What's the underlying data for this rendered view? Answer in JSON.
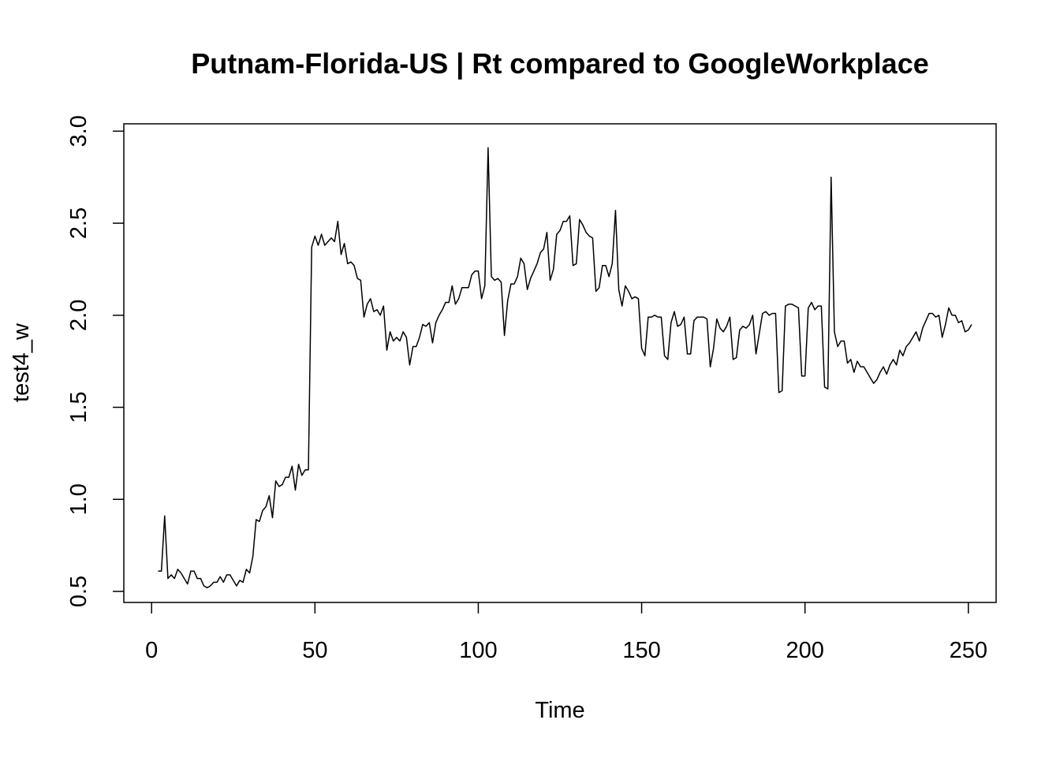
{
  "chart_data": {
    "type": "line",
    "title": "Putnam-Florida-US | Rt compared to GoogleWorkplace",
    "xlabel": "Time",
    "ylabel": "test4_w",
    "xlim": [
      -8.5,
      258.5
    ],
    "ylim": [
      0.44,
      3.04
    ],
    "xticks": [
      0,
      50,
      100,
      150,
      200,
      250
    ],
    "xtick_labels": [
      "0",
      "50",
      "100",
      "150",
      "200",
      "250"
    ],
    "yticks": [
      0.5,
      1.0,
      1.5,
      2.0,
      2.5,
      3.0
    ],
    "ytick_labels": [
      "0.5",
      "1.0",
      "1.5",
      "2.0",
      "2.5",
      "3.0"
    ],
    "grid": false,
    "legend": "none",
    "color": "#000000",
    "x_start": 2,
    "series": [
      {
        "values": [
          0.61,
          0.61,
          0.91,
          0.57,
          0.59,
          0.57,
          0.62,
          0.6,
          0.57,
          0.54,
          0.61,
          0.61,
          0.57,
          0.57,
          0.53,
          0.52,
          0.53,
          0.55,
          0.55,
          0.58,
          0.55,
          0.59,
          0.59,
          0.56,
          0.53,
          0.56,
          0.55,
          0.62,
          0.6,
          0.69,
          0.89,
          0.88,
          0.94,
          0.96,
          1.02,
          0.9,
          1.1,
          1.07,
          1.08,
          1.12,
          1.12,
          1.18,
          1.05,
          1.19,
          1.13,
          1.16,
          1.16,
          2.37,
          2.43,
          2.38,
          2.44,
          2.38,
          2.4,
          2.42,
          2.4,
          2.51,
          2.33,
          2.39,
          2.28,
          2.29,
          2.27,
          2.2,
          2.19,
          1.99,
          2.06,
          2.09,
          2.02,
          2.03,
          2.0,
          2.05,
          1.81,
          1.91,
          1.86,
          1.88,
          1.86,
          1.91,
          1.88,
          1.73,
          1.83,
          1.83,
          1.88,
          1.95,
          1.94,
          1.96,
          1.85,
          1.96,
          2.0,
          2.03,
          2.07,
          2.07,
          2.16,
          2.06,
          2.09,
          2.15,
          2.15,
          2.15,
          2.22,
          2.24,
          2.24,
          2.09,
          2.16,
          2.91,
          2.21,
          2.19,
          2.2,
          2.18,
          1.89,
          2.08,
          2.17,
          2.17,
          2.21,
          2.31,
          2.28,
          2.14,
          2.2,
          2.24,
          2.28,
          2.34,
          2.36,
          2.45,
          2.19,
          2.25,
          2.44,
          2.46,
          2.51,
          2.51,
          2.54,
          2.27,
          2.28,
          2.52,
          2.49,
          2.45,
          2.43,
          2.42,
          2.13,
          2.15,
          2.27,
          2.27,
          2.21,
          2.28,
          2.57,
          2.14,
          2.05,
          2.16,
          2.13,
          2.09,
          2.1,
          2.09,
          1.82,
          1.78,
          1.99,
          1.99,
          2.0,
          1.99,
          1.99,
          1.78,
          1.76,
          1.96,
          2.02,
          1.94,
          1.95,
          1.99,
          1.79,
          1.79,
          1.97,
          1.99,
          1.99,
          1.99,
          1.98,
          1.72,
          1.82,
          1.98,
          1.93,
          1.91,
          1.94,
          1.99,
          1.76,
          1.77,
          1.92,
          1.94,
          1.93,
          1.95,
          2.0,
          1.79,
          1.9,
          2.01,
          2.02,
          2.0,
          2.01,
          2.01,
          1.58,
          1.59,
          2.05,
          2.06,
          2.06,
          2.05,
          2.04,
          1.67,
          1.67,
          2.04,
          2.07,
          2.03,
          2.05,
          2.05,
          1.61,
          1.6,
          2.75,
          1.91,
          1.83,
          1.86,
          1.86,
          1.74,
          1.76,
          1.69,
          1.75,
          1.72,
          1.72,
          1.69,
          1.66,
          1.63,
          1.65,
          1.69,
          1.72,
          1.68,
          1.73,
          1.76,
          1.73,
          1.81,
          1.78,
          1.83,
          1.85,
          1.88,
          1.91,
          1.86,
          1.93,
          1.97,
          2.01,
          2.01,
          1.99,
          2.0,
          1.88,
          1.95,
          2.04,
          2.0,
          2.0,
          1.96,
          1.97,
          1.91,
          1.92,
          1.95
        ]
      }
    ]
  }
}
